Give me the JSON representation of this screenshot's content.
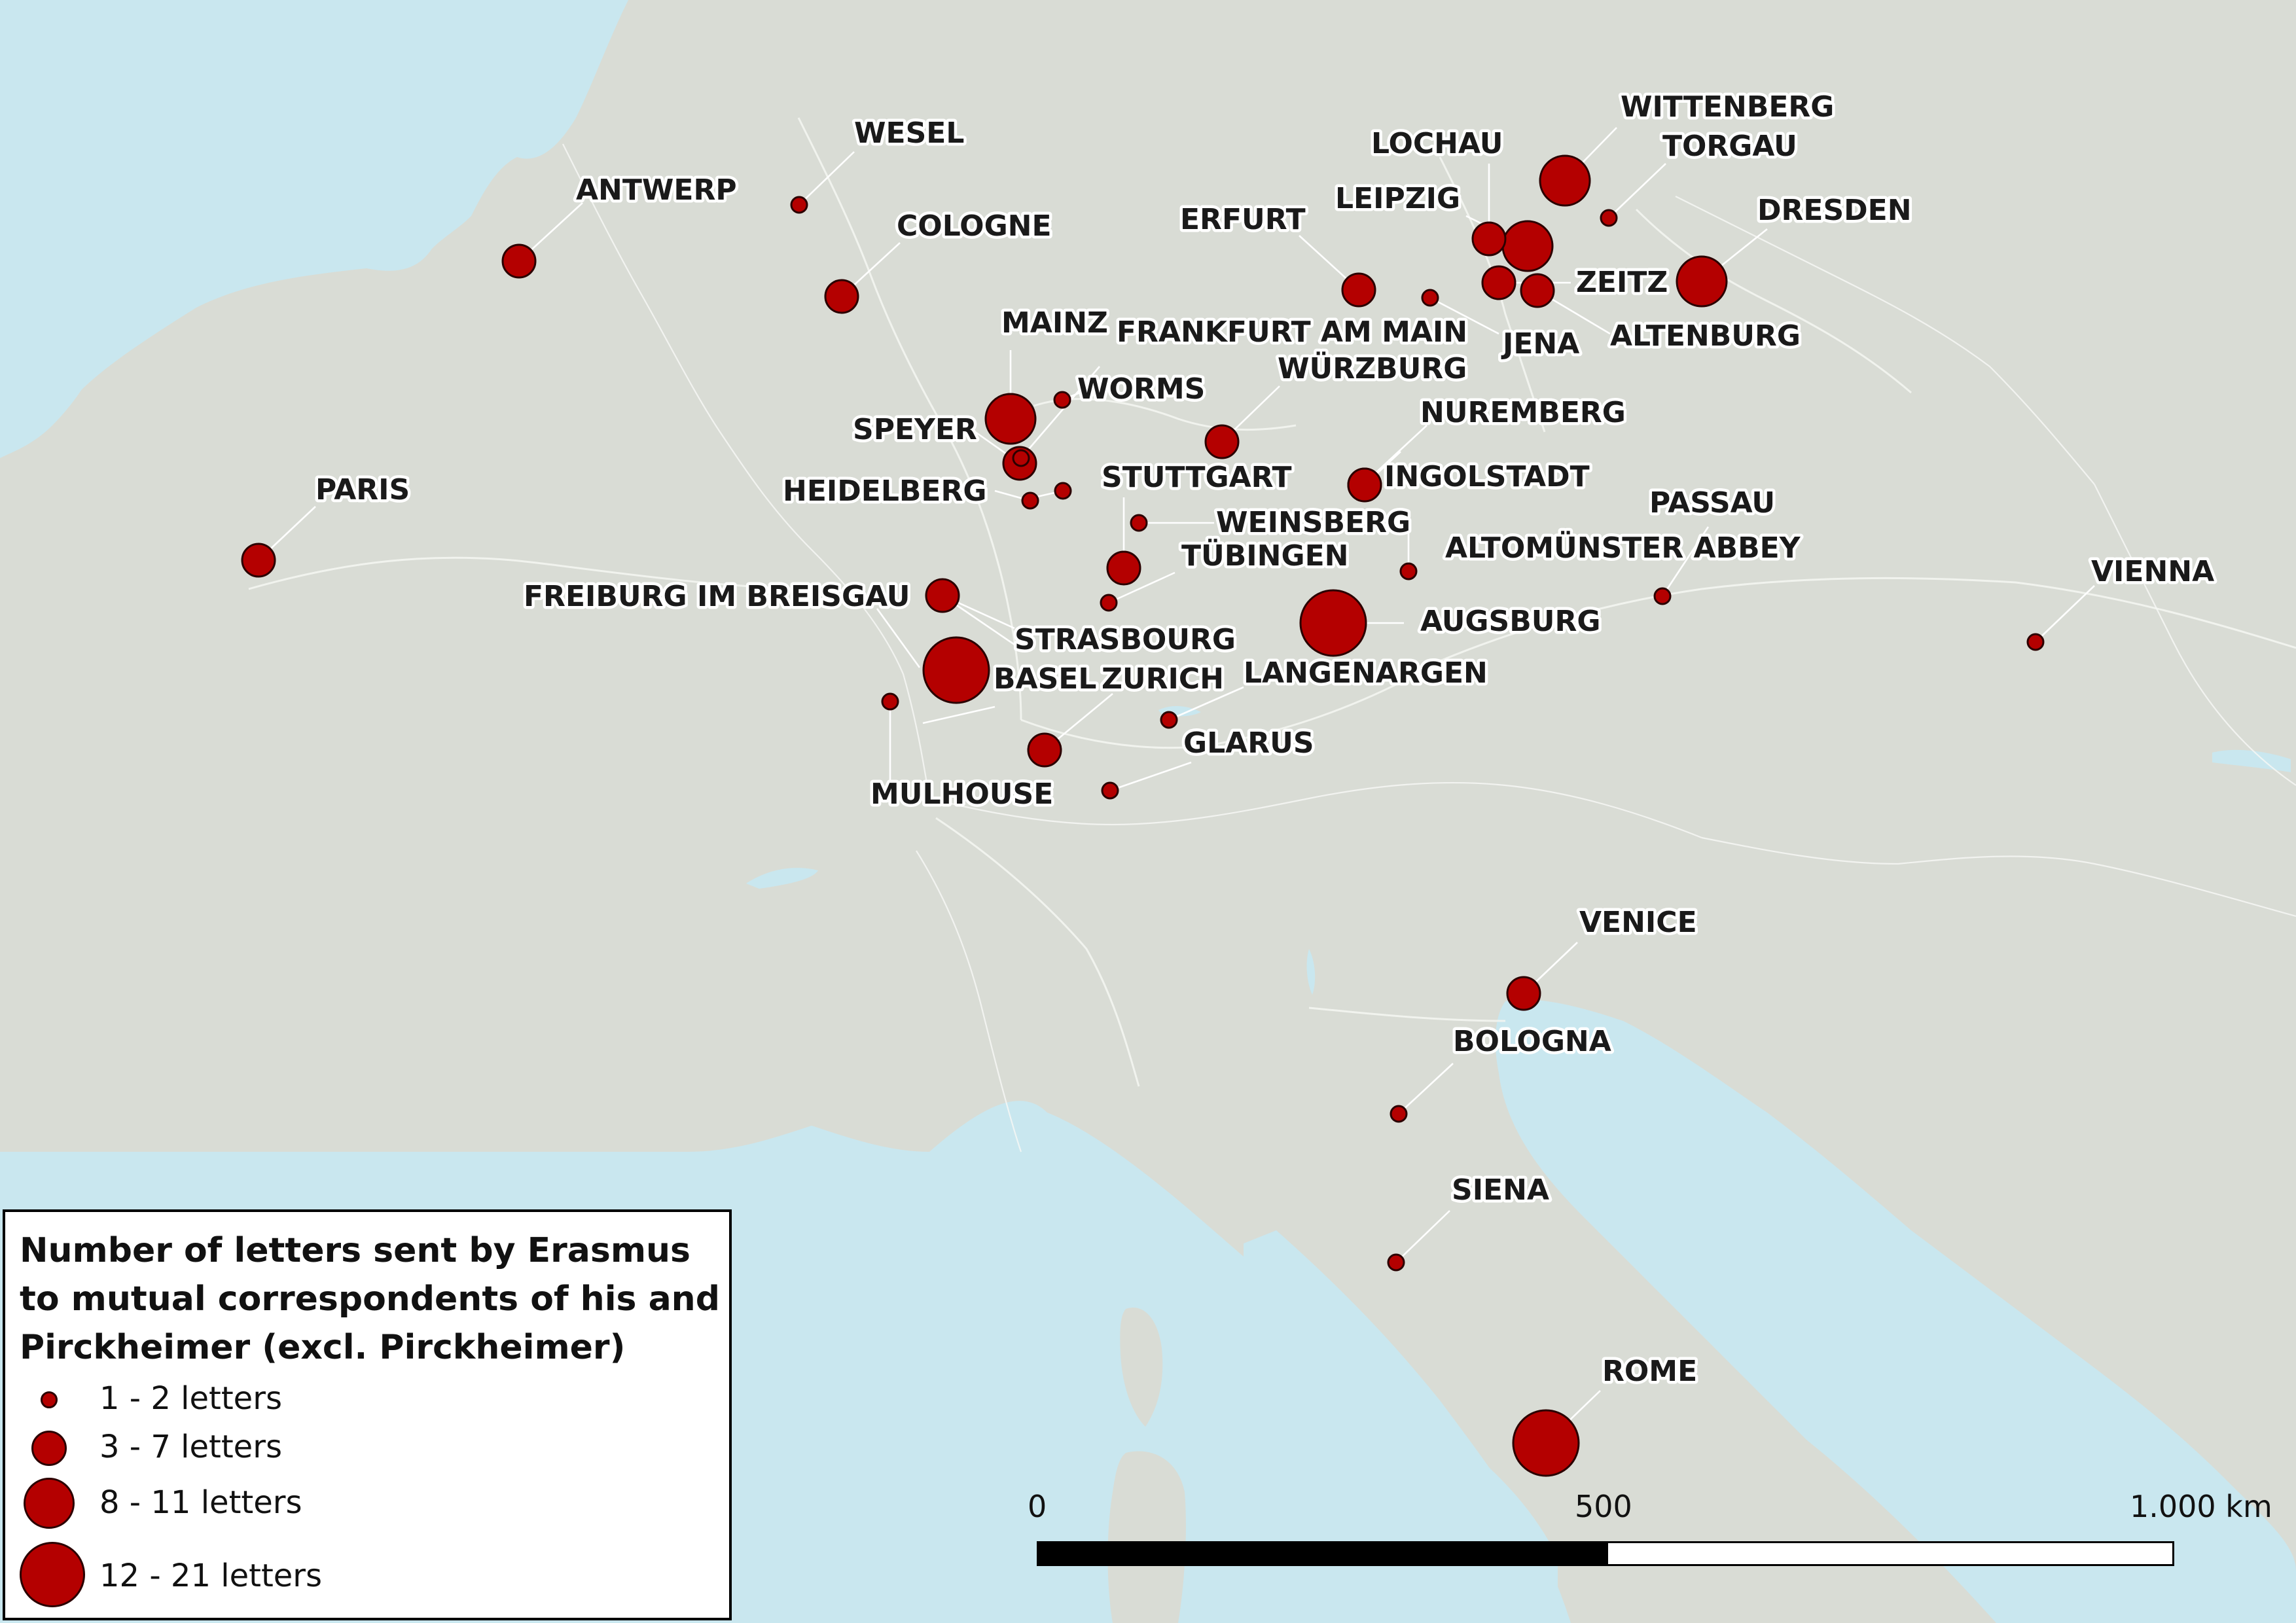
{
  "colors": {
    "land": "#d9dcd5",
    "sea": "#c9e7ef",
    "city_fill": "#b40000",
    "city_stroke": "#2b0000",
    "label_halo": "#ffffff"
  },
  "legend": {
    "title": "Number of letters sent by Erasmus to mutual correspondents of his and Pirckheimer (excl. Pirckheimer)",
    "items": [
      {
        "label": "1 - 2 letters"
      },
      {
        "label": "3 - 7 letters"
      },
      {
        "label": "8 - 11 letters"
      },
      {
        "label": "12 - 21 letters"
      }
    ]
  },
  "scale": {
    "zero": "0",
    "mid": "500",
    "end": "1.000 km"
  },
  "cities": [
    {
      "name": "WESEL",
      "letters_class": "1 - 2 letters"
    },
    {
      "name": "ANTWERP",
      "letters_class": "3 - 7 letters"
    },
    {
      "name": "COLOGNE",
      "letters_class": "3 - 7 letters"
    },
    {
      "name": "PARIS",
      "letters_class": "3 - 7 letters"
    },
    {
      "name": "MAINZ",
      "letters_class": "8 - 11 letters"
    },
    {
      "name": "FRANKFURT AM MAIN",
      "letters_class": "1 - 2 letters"
    },
    {
      "name": "WORMS",
      "letters_class": "1 - 2 letters"
    },
    {
      "name": "SPEYER",
      "letters_class": "3 - 7 letters"
    },
    {
      "name": "HEIDELBERG",
      "letters_class": "1 - 2 letters"
    },
    {
      "name": "WÜRZBURG",
      "letters_class": "3 - 7 letters"
    },
    {
      "name": "STUTTGART",
      "letters_class": "1 - 2 letters"
    },
    {
      "name": "WEINSBERG",
      "letters_class": "1 - 2 letters"
    },
    {
      "name": "TÜBINGEN",
      "letters_class": "3 - 7 letters"
    },
    {
      "name": "FREIBURG IM BREISGAU",
      "letters_class": "3 - 7 letters"
    },
    {
      "name": "STRASBOURG",
      "letters_class": "1 - 2 letters"
    },
    {
      "name": "BASEL",
      "letters_class": "12 - 21 letters"
    },
    {
      "name": "ZURICH",
      "letters_class": "3 - 7 letters"
    },
    {
      "name": "MULHOUSE",
      "letters_class": "1 - 2 letters"
    },
    {
      "name": "GLARUS",
      "letters_class": "1 - 2 letters"
    },
    {
      "name": "LANGENARGEN",
      "letters_class": "1 - 2 letters"
    },
    {
      "name": "AUGSBURG",
      "letters_class": "12 - 21 letters"
    },
    {
      "name": "ALTOMÜNSTER ABBEY",
      "letters_class": "1 - 2 letters"
    },
    {
      "name": "INGOLSTADT",
      "letters_class": "3 - 7 letters"
    },
    {
      "name": "NUREMBERG",
      "letters_class": "3 - 7 letters"
    },
    {
      "name": "PASSAU",
      "letters_class": "1 - 2 letters"
    },
    {
      "name": "VIENNA",
      "letters_class": "1 - 2 letters"
    },
    {
      "name": "ERFURT",
      "letters_class": "3 - 7 letters"
    },
    {
      "name": "JENA",
      "letters_class": "1 - 2 letters"
    },
    {
      "name": "LOCHAU",
      "letters_class": "3 - 7 letters"
    },
    {
      "name": "LEIPZIG",
      "letters_class": "8 - 11 letters"
    },
    {
      "name": "WITTENBERG",
      "letters_class": "8 - 11 letters"
    },
    {
      "name": "TORGAU",
      "letters_class": "1 - 2 letters"
    },
    {
      "name": "ZEITZ",
      "letters_class": "3 - 7 letters"
    },
    {
      "name": "ALTENBURG",
      "letters_class": "3 - 7 letters"
    },
    {
      "name": "DRESDEN",
      "letters_class": "8 - 11 letters"
    },
    {
      "name": "VENICE",
      "letters_class": "3 - 7 letters"
    },
    {
      "name": "BOLOGNA",
      "letters_class": "1 - 2 letters"
    },
    {
      "name": "SIENA",
      "letters_class": "1 - 2 letters"
    },
    {
      "name": "ROME",
      "letters_class": "12 - 21 letters"
    }
  ]
}
